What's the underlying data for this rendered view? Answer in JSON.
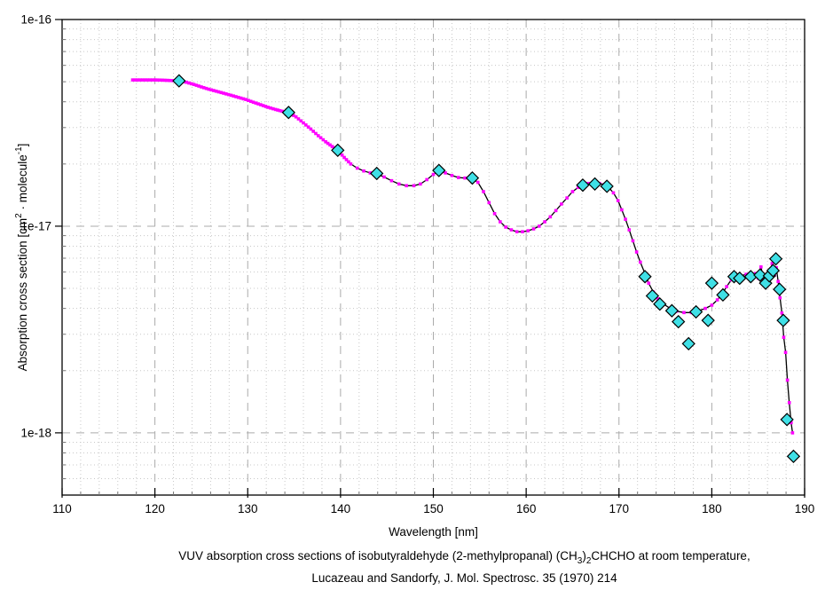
{
  "figure": {
    "caption": {
      "line1": [
        {
          "t": "VUV absorption cross sections of isobutyraldehyde (2-methylpropanal) (CH"
        },
        {
          "t": "3",
          "sub": true
        },
        {
          "t": ")"
        },
        {
          "t": "2",
          "sub": true
        },
        {
          "t": "CHCHO at room temperature,"
        }
      ],
      "line2": [
        {
          "t": "Lucazeau and Sandorfy, J. Mol. Spectrosc. 35 (1970) 214"
        }
      ]
    }
  },
  "chart_data": {
    "type": "line",
    "title": "",
    "xlabel": "Wavelength [nm]",
    "ylabel_segments": [
      {
        "t": "Absorption cross section [cm"
      },
      {
        "t": "2",
        "sup": true
      },
      {
        "t": " · molecule"
      },
      {
        "t": "-1",
        "sup": true
      },
      {
        "t": "]"
      }
    ],
    "xlim": [
      110,
      190
    ],
    "ylim": [
      5e-19,
      1e-16
    ],
    "y_scale": "log",
    "grid": true,
    "x_ticks": [
      "110",
      "120",
      "130",
      "140",
      "150",
      "160",
      "170",
      "180",
      "190"
    ],
    "x_tick_values": [
      110,
      120,
      130,
      140,
      150,
      160,
      170,
      180,
      190
    ],
    "x_minor_step": 2,
    "y_ticks": [
      {
        "label": "1e-16",
        "value": 1e-16
      },
      {
        "label": "1e-17",
        "value": 1e-17
      },
      {
        "label": "1e-18",
        "value": 1e-18
      }
    ],
    "colors": {
      "background": "#FFFFFF",
      "axis": "#000000",
      "grid_minor": "#C8C8C8",
      "grid_major": "#ABABAB",
      "curve_line": "#000000",
      "dense_marker": "#FF00FF",
      "symbol_fill": "#3FE0E6",
      "symbol_stroke": "#000000"
    },
    "series": [
      {
        "name": "absorption spectrum (dense scan, line + small square markers)",
        "marker": "square",
        "points": [
          [
            117.6,
            5.1e-17
          ],
          [
            118.4,
            5.1e-17
          ],
          [
            119.2,
            5.1e-17
          ],
          [
            120.0,
            5.1e-17
          ],
          [
            120.8,
            5.09e-17
          ],
          [
            121.6,
            5.07e-17
          ],
          [
            122.6,
            5.05e-17
          ],
          [
            123.4,
            4.97e-17
          ],
          [
            124.2,
            4.85e-17
          ],
          [
            125.0,
            4.72e-17
          ],
          [
            125.8,
            4.6e-17
          ],
          [
            126.6,
            4.5e-17
          ],
          [
            127.4,
            4.4e-17
          ],
          [
            128.2,
            4.3e-17
          ],
          [
            129.0,
            4.2e-17
          ],
          [
            129.8,
            4.1e-17
          ],
          [
            130.6,
            3.98e-17
          ],
          [
            131.4,
            3.87e-17
          ],
          [
            132.2,
            3.76e-17
          ],
          [
            133.0,
            3.67e-17
          ],
          [
            133.7,
            3.6e-17
          ],
          [
            134.4,
            3.55e-17
          ],
          [
            135.2,
            3.38e-17
          ],
          [
            136.0,
            3.16e-17
          ],
          [
            136.8,
            2.95e-17
          ],
          [
            137.6,
            2.74e-17
          ],
          [
            138.4,
            2.56e-17
          ],
          [
            139.1,
            2.43e-17
          ],
          [
            139.7,
            2.33e-17
          ],
          [
            140.4,
            2.15e-17
          ],
          [
            141.1,
            2e-17
          ],
          [
            141.8,
            1.91e-17
          ],
          [
            142.5,
            1.85e-17
          ],
          [
            143.2,
            1.81e-17
          ],
          [
            143.9,
            1.79e-17
          ],
          [
            144.7,
            1.73e-17
          ],
          [
            145.5,
            1.66e-17
          ],
          [
            146.3,
            1.6e-17
          ],
          [
            147.1,
            1.57e-17
          ],
          [
            147.9,
            1.57e-17
          ],
          [
            148.6,
            1.6e-17
          ],
          [
            149.3,
            1.68e-17
          ],
          [
            150.0,
            1.78e-17
          ],
          [
            150.6,
            1.85e-17
          ],
          [
            151.3,
            1.81e-17
          ],
          [
            152.0,
            1.76e-17
          ],
          [
            152.7,
            1.72e-17
          ],
          [
            153.4,
            1.71e-17
          ],
          [
            154.2,
            1.7e-17
          ],
          [
            154.8,
            1.63e-17
          ],
          [
            155.4,
            1.47e-17
          ],
          [
            156.0,
            1.3e-17
          ],
          [
            156.6,
            1.15e-17
          ],
          [
            157.2,
            1.05e-17
          ],
          [
            157.8,
            9.9e-18
          ],
          [
            158.4,
            9.6e-18
          ],
          [
            159.0,
            9.4e-18
          ],
          [
            159.6,
            9.4e-18
          ],
          [
            160.2,
            9.5e-18
          ],
          [
            160.8,
            9.7e-18
          ],
          [
            161.4,
            1e-17
          ],
          [
            162.0,
            1.05e-17
          ],
          [
            162.6,
            1.11e-17
          ],
          [
            163.2,
            1.19e-17
          ],
          [
            163.8,
            1.28e-17
          ],
          [
            164.4,
            1.37e-17
          ],
          [
            165.0,
            1.47e-17
          ],
          [
            165.6,
            1.54e-17
          ],
          [
            166.1,
            1.58e-17
          ],
          [
            166.7,
            1.61e-17
          ],
          [
            167.3,
            1.62e-17
          ],
          [
            167.9,
            1.61e-17
          ],
          [
            168.4,
            1.59e-17
          ],
          [
            168.9,
            1.54e-17
          ],
          [
            169.4,
            1.45e-17
          ],
          [
            169.9,
            1.33e-17
          ],
          [
            170.3,
            1.2e-17
          ],
          [
            170.7,
            1.08e-17
          ],
          [
            171.1,
            9.6e-18
          ],
          [
            171.5,
            8.5e-18
          ],
          [
            171.9,
            7.5e-18
          ],
          [
            172.3,
            6.7e-18
          ],
          [
            172.8,
            5.9e-18
          ],
          [
            173.2,
            5.3e-18
          ],
          [
            173.7,
            4.8e-18
          ],
          [
            174.2,
            4.45e-18
          ],
          [
            174.8,
            4.2e-18
          ],
          [
            175.5,
            4e-18
          ],
          [
            176.2,
            3.88e-18
          ],
          [
            177.0,
            3.82e-18
          ],
          [
            177.8,
            3.82e-18
          ],
          [
            178.6,
            3.9e-18
          ],
          [
            179.3,
            4e-18
          ],
          [
            180.0,
            4.15e-18
          ],
          [
            180.6,
            4.4e-18
          ],
          [
            181.1,
            4.7e-18
          ],
          [
            181.6,
            5.1e-18
          ],
          [
            182.1,
            5.5e-18
          ],
          [
            182.6,
            5.7e-18
          ],
          [
            183.1,
            5.75e-18
          ],
          [
            183.7,
            5.85e-18
          ],
          [
            184.3,
            5.7e-18
          ],
          [
            184.7,
            5.9e-18
          ],
          [
            185.0,
            5.6e-18
          ],
          [
            185.3,
            6.35e-18
          ],
          [
            185.6,
            5.5e-18
          ],
          [
            185.9,
            5.65e-18
          ],
          [
            186.2,
            5.75e-18
          ],
          [
            186.5,
            6.6e-18
          ],
          [
            186.75,
            5.8e-18
          ],
          [
            186.95,
            6.3e-18
          ],
          [
            187.15,
            5.4e-18
          ],
          [
            187.35,
            4.5e-18
          ],
          [
            187.55,
            3.8e-18
          ],
          [
            187.75,
            2.9e-18
          ],
          [
            187.95,
            2.45e-18
          ],
          [
            188.15,
            1.8e-18
          ],
          [
            188.35,
            1.4e-18
          ],
          [
            188.55,
            1.12e-18
          ],
          [
            188.7,
            1e-18
          ]
        ]
      },
      {
        "name": "selected data points (cyan diamonds)",
        "marker": "diamond",
        "points": [
          [
            122.6,
            5.05e-17
          ],
          [
            134.4,
            3.55e-17
          ],
          [
            139.7,
            2.33e-17
          ],
          [
            143.9,
            1.8e-17
          ],
          [
            150.6,
            1.86e-17
          ],
          [
            154.2,
            1.71e-17
          ],
          [
            166.1,
            1.58e-17
          ],
          [
            167.4,
            1.6e-17
          ],
          [
            168.7,
            1.56e-17
          ],
          [
            172.8,
            5.7e-18
          ],
          [
            173.6,
            4.6e-18
          ],
          [
            174.4,
            4.2e-18
          ],
          [
            175.7,
            3.9e-18
          ],
          [
            176.4,
            3.45e-18
          ],
          [
            177.5,
            2.7e-18
          ],
          [
            178.3,
            3.85e-18
          ],
          [
            179.6,
            3.5e-18
          ],
          [
            180.0,
            5.3e-18
          ],
          [
            181.2,
            4.65e-18
          ],
          [
            182.4,
            5.7e-18
          ],
          [
            183.0,
            5.6e-18
          ],
          [
            184.2,
            5.7e-18
          ],
          [
            185.2,
            5.8e-18
          ],
          [
            185.8,
            5.3e-18
          ],
          [
            186.2,
            5.75e-18
          ],
          [
            186.6,
            6.1e-18
          ],
          [
            186.9,
            6.95e-18
          ],
          [
            187.3,
            4.95e-18
          ],
          [
            187.7,
            3.5e-18
          ],
          [
            188.1,
            1.16e-18
          ],
          [
            188.8,
            7.7e-19
          ]
        ]
      }
    ]
  }
}
